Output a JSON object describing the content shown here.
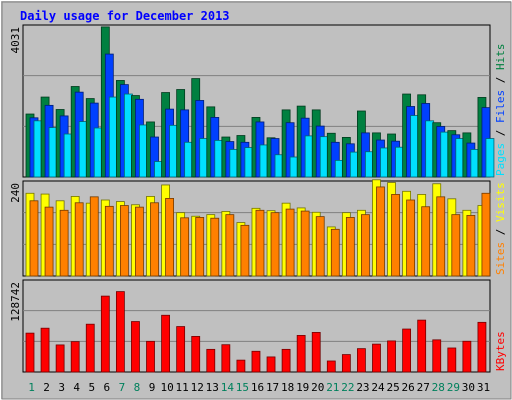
{
  "chart_data": [
    {
      "type": "bar",
      "title": "Daily usage for December 2013",
      "panel": "hits-files-pages",
      "ylabel_parts": [
        "Pages",
        "Files",
        "Hits"
      ],
      "y_max_label": "4031",
      "ylim": [
        0,
        4031
      ],
      "categories": [
        "1",
        "2",
        "3",
        "4",
        "5",
        "6",
        "7",
        "8",
        "9",
        "10",
        "11",
        "12",
        "13",
        "14",
        "15",
        "16",
        "17",
        "18",
        "19",
        "20",
        "21",
        "22",
        "23",
        "24",
        "25",
        "26",
        "27",
        "28",
        "29",
        "30",
        "31"
      ],
      "series": [
        {
          "name": "Hits",
          "color": "#008040",
          "values": [
            1670,
            2120,
            1790,
            2400,
            2080,
            3980,
            2560,
            2160,
            1460,
            2240,
            2320,
            2610,
            1860,
            1060,
            1100,
            1580,
            1040,
            1780,
            1880,
            1780,
            1160,
            1050,
            1750,
            1170,
            1140,
            2200,
            2180,
            1440,
            1230,
            1170,
            2110
          ]
        },
        {
          "name": "Files",
          "color": "#0040ff",
          "values": [
            1570,
            1900,
            1620,
            2250,
            1960,
            3260,
            2450,
            2060,
            1060,
            1800,
            1780,
            2030,
            1580,
            940,
            920,
            1460,
            1020,
            1440,
            1560,
            1350,
            920,
            880,
            1170,
            980,
            950,
            1870,
            1950,
            1340,
            1120,
            900,
            1840
          ]
        },
        {
          "name": "Pages",
          "color": "#00e0ff",
          "values": [
            1490,
            1310,
            1140,
            1470,
            1300,
            2120,
            2200,
            1380,
            410,
            1370,
            920,
            1020,
            970,
            730,
            780,
            850,
            590,
            530,
            1090,
            1070,
            440,
            660,
            670,
            770,
            790,
            1630,
            1490,
            1190,
            1020,
            730,
            1020
          ]
        }
      ]
    },
    {
      "type": "bar",
      "panel": "visits-sites",
      "ylabel_parts": [
        "Sites",
        "Visits"
      ],
      "y_max_label": "240",
      "ylim": [
        0,
        240
      ],
      "categories": [
        "1",
        "2",
        "3",
        "4",
        "5",
        "6",
        "7",
        "8",
        "9",
        "10",
        "11",
        "12",
        "13",
        "14",
        "15",
        "16",
        "17",
        "18",
        "19",
        "20",
        "21",
        "22",
        "23",
        "24",
        "25",
        "26",
        "27",
        "28",
        "29",
        "30",
        "31"
      ],
      "series": [
        {
          "name": "Visits",
          "color": "#ffff00",
          "values": [
            209,
            207,
            190,
            201,
            184,
            192,
            188,
            180,
            201,
            230,
            160,
            151,
            155,
            163,
            135,
            171,
            165,
            184,
            172,
            161,
            124,
            160,
            166,
            243,
            236,
            214,
            206,
            233,
            195,
            166,
            178
          ]
        },
        {
          "name": "Sites",
          "color": "#ff8000",
          "values": [
            190,
            174,
            166,
            185,
            200,
            176,
            178,
            174,
            185,
            196,
            147,
            148,
            146,
            155,
            128,
            166,
            160,
            169,
            164,
            150,
            118,
            148,
            155,
            225,
            206,
            192,
            175,
            200,
            155,
            153,
            209
          ]
        }
      ]
    },
    {
      "type": "bar",
      "panel": "kbytes",
      "ylabel_parts": [
        "KBytes"
      ],
      "y_max_label": "128742",
      "ylim": [
        0,
        128742
      ],
      "categories": [
        "1",
        "2",
        "3",
        "4",
        "5",
        "6",
        "7",
        "8",
        "9",
        "10",
        "11",
        "12",
        "13",
        "14",
        "15",
        "16",
        "17",
        "18",
        "19",
        "20",
        "21",
        "22",
        "23",
        "24",
        "25",
        "26",
        "27",
        "28",
        "29",
        "30",
        "31"
      ],
      "series": [
        {
          "name": "KBytes",
          "color": "#ff0000",
          "values": [
            54400,
            61300,
            37900,
            42500,
            66900,
            106200,
            112500,
            70600,
            42900,
            79400,
            63600,
            49800,
            31700,
            38200,
            16600,
            29000,
            21100,
            31700,
            51200,
            55400,
            15400,
            24400,
            32700,
            39000,
            43500,
            60100,
            72600,
            45000,
            33600,
            43000,
            69500
          ]
        }
      ]
    }
  ],
  "x_label_colors": {
    "weekday": "#000000",
    "weekend": "#00805c"
  },
  "weekend_days": [
    "1",
    "7",
    "8",
    "14",
    "15",
    "21",
    "22",
    "28",
    "29"
  ],
  "colors": {
    "background": "#c0c0c0",
    "plot_background": "#c0c0c0",
    "gridline": "#808080",
    "title": "#0000ff",
    "divider": "#000000"
  }
}
